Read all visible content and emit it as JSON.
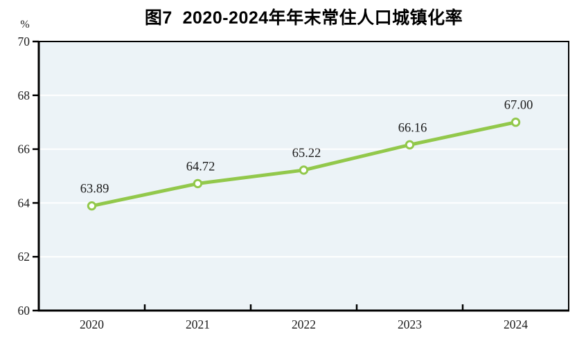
{
  "chart_data": {
    "type": "line",
    "title": "图7  2020-2024年年末常住人口城镇化率",
    "unit_label": "%",
    "categories": [
      "2020",
      "2021",
      "2022",
      "2023",
      "2024"
    ],
    "series": [
      {
        "name": "年末常住人口城镇化率",
        "values": [
          63.89,
          64.72,
          65.22,
          66.16,
          67.0
        ],
        "value_labels": [
          "63.89",
          "64.72",
          "65.22",
          "66.16",
          "67.00"
        ]
      }
    ],
    "xlabel": "",
    "ylabel": "%",
    "ylim": [
      60,
      70
    ],
    "yticks": [
      60,
      62,
      64,
      66,
      68,
      70
    ],
    "grid": true,
    "legend": "none",
    "colors": {
      "line": "#92c84b",
      "marker_fill": "#ffffff",
      "marker_stroke": "#92c84b",
      "plot_background": "#ecf3f7",
      "gridline": "#ffffff",
      "axis": "#000000",
      "text": "#1a1a1a",
      "title": "#000000"
    }
  }
}
